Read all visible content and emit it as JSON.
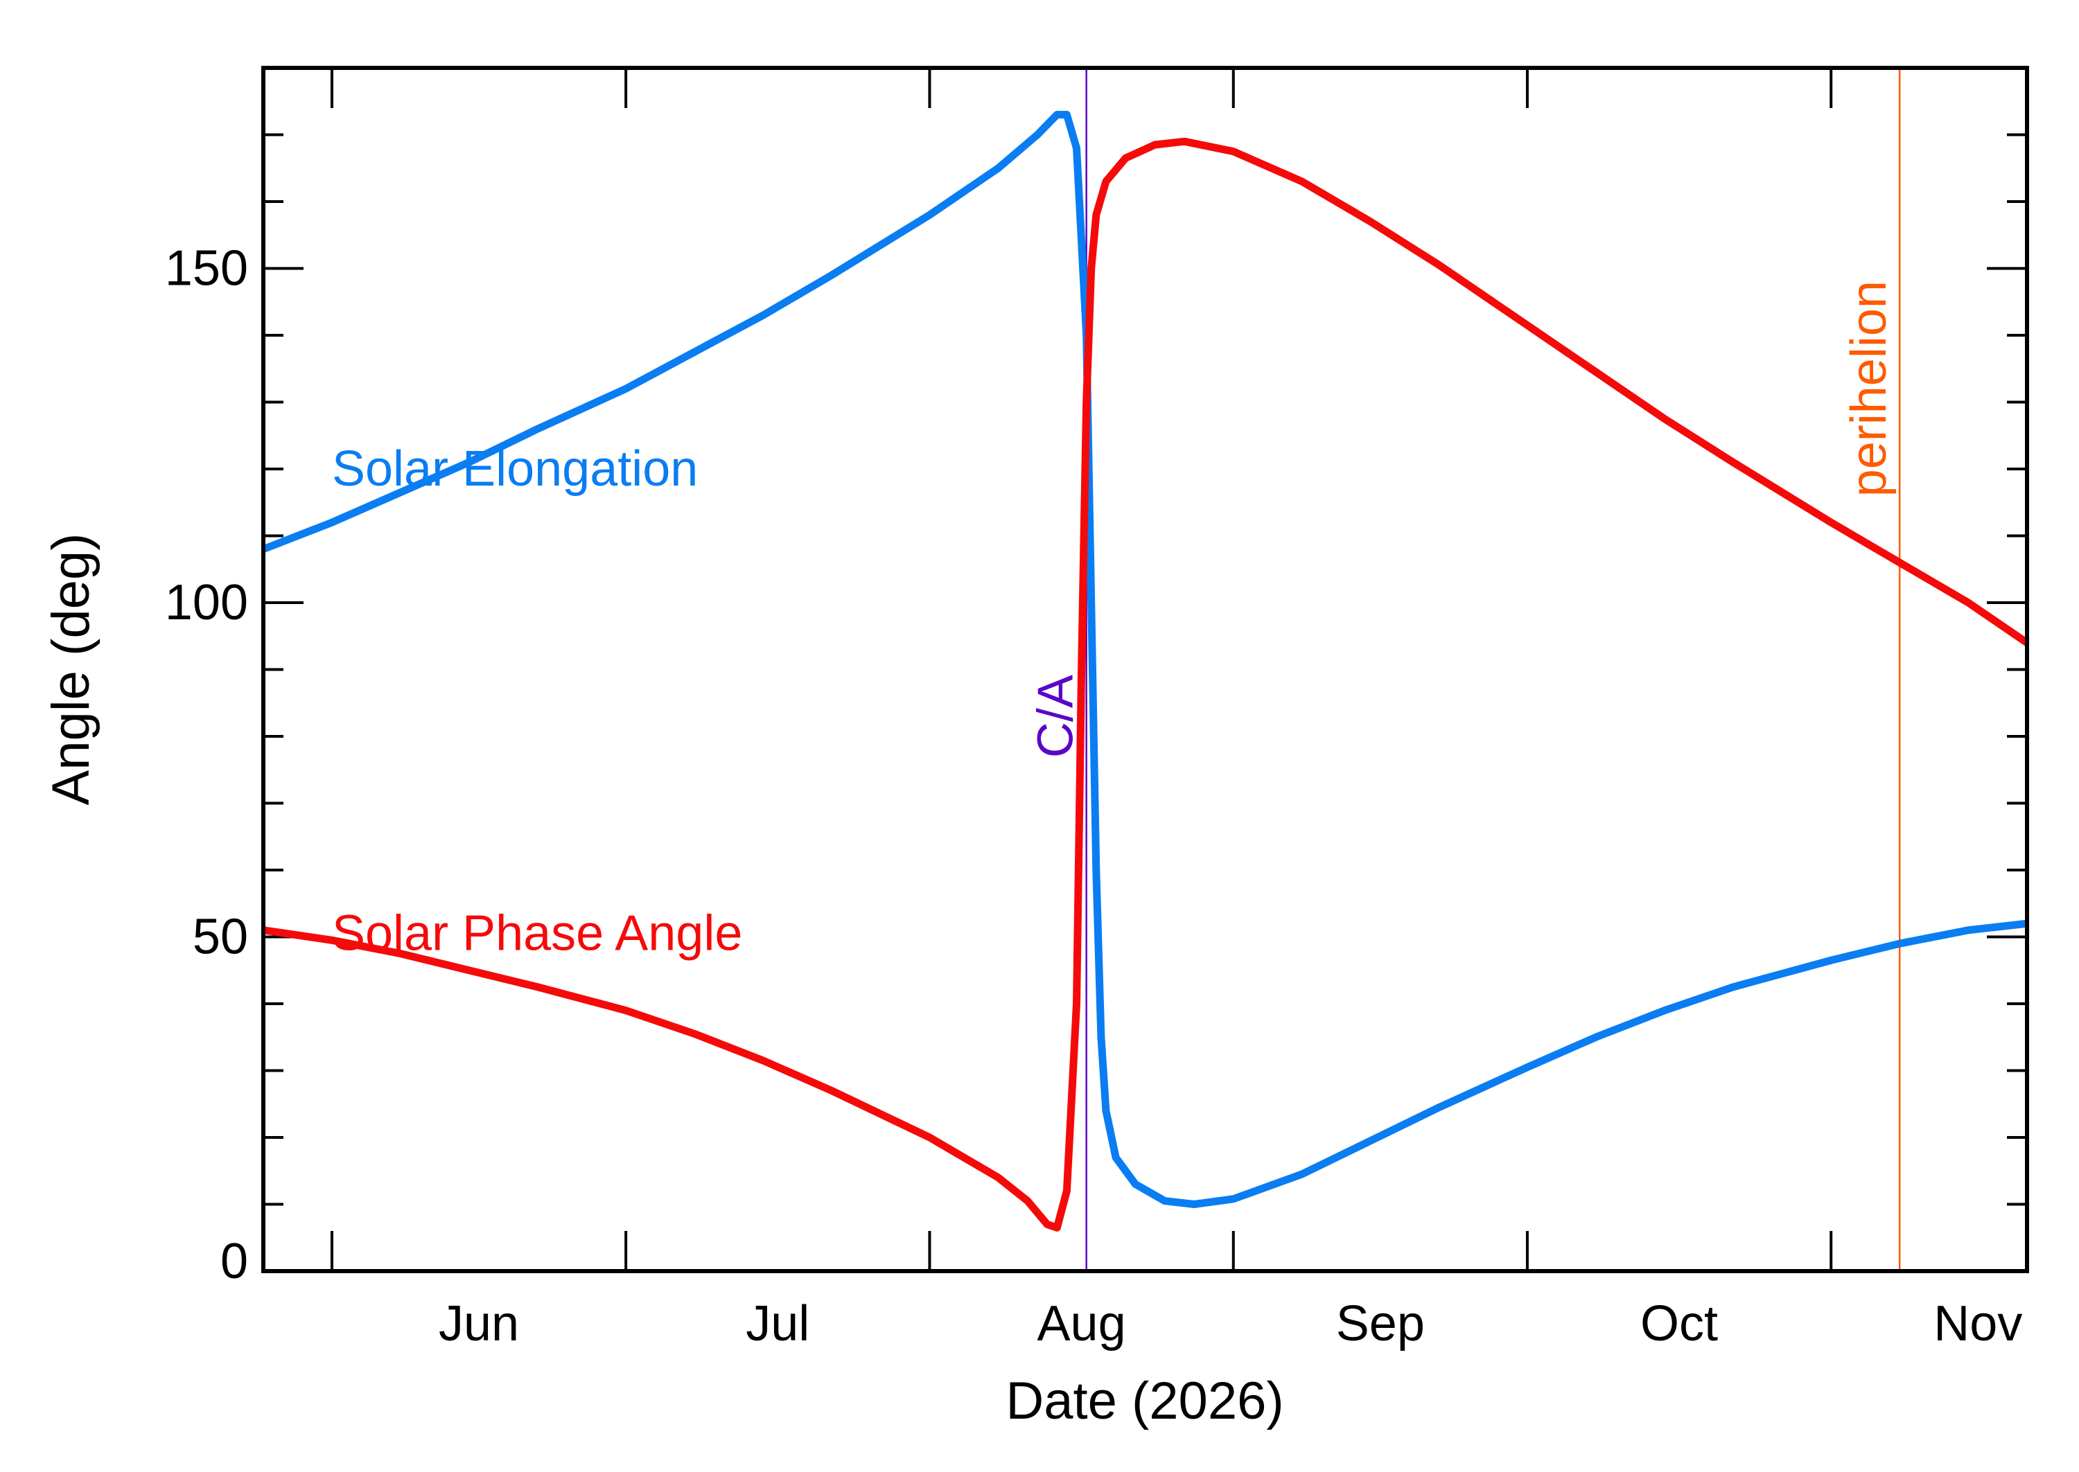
{
  "chart_data": {
    "type": "line",
    "title": "",
    "xlabel": "Date (2026)",
    "ylabel": "Angle (deg)",
    "xlim": [
      "2026-05-25",
      "2026-11-21"
    ],
    "ylim": [
      0,
      180
    ],
    "grid": false,
    "x_ticks": [
      {
        "date": "2026-06-01",
        "label": "Jun"
      },
      {
        "date": "2026-07-01",
        "label": "Jul"
      },
      {
        "date": "2026-08-01",
        "label": "Aug"
      },
      {
        "date": "2026-09-01",
        "label": "Sep"
      },
      {
        "date": "2026-10-01",
        "label": "Oct"
      },
      {
        "date": "2026-11-01",
        "label": "Nov"
      }
    ],
    "y_ticks": [
      0,
      50,
      100,
      150
    ],
    "series": [
      {
        "name": "Solar Elongation",
        "color": "#0a7df2",
        "points": [
          [
            "2026-05-25",
            108
          ],
          [
            "2026-06-01",
            112
          ],
          [
            "2026-06-08",
            116.5
          ],
          [
            "2026-06-15",
            121
          ],
          [
            "2026-06-22",
            126
          ],
          [
            "2026-07-01",
            132
          ],
          [
            "2026-07-08",
            137.5
          ],
          [
            "2026-07-15",
            143
          ],
          [
            "2026-07-22",
            149
          ],
          [
            "2026-08-01",
            158
          ],
          [
            "2026-08-08",
            165
          ],
          [
            "2026-08-12",
            170
          ],
          [
            "2026-08-14",
            173
          ],
          [
            "2026-08-15",
            173
          ],
          [
            "2026-08-16",
            168
          ],
          [
            "2026-08-17",
            140
          ],
          [
            "2026-08-17 12:00",
            100
          ],
          [
            "2026-08-18",
            60
          ],
          [
            "2026-08-18 12:00",
            35
          ],
          [
            "2026-08-19",
            24
          ],
          [
            "2026-08-20",
            17
          ],
          [
            "2026-08-22",
            13
          ],
          [
            "2026-08-25",
            10.5
          ],
          [
            "2026-08-28",
            10
          ],
          [
            "2026-09-01",
            10.8
          ],
          [
            "2026-09-08",
            14.5
          ],
          [
            "2026-09-15",
            19.5
          ],
          [
            "2026-09-22",
            24.5
          ],
          [
            "2026-10-01",
            30.5
          ],
          [
            "2026-10-08",
            35
          ],
          [
            "2026-10-15",
            39
          ],
          [
            "2026-10-22",
            42.5
          ],
          [
            "2026-11-01",
            46.5
          ],
          [
            "2026-11-08",
            49
          ],
          [
            "2026-11-15",
            51
          ],
          [
            "2026-11-21",
            52
          ]
        ]
      },
      {
        "name": "Solar Phase Angle",
        "color": "#f50a0a",
        "points": [
          [
            "2026-05-25",
            51
          ],
          [
            "2026-06-01",
            49.5
          ],
          [
            "2026-06-08",
            47.5
          ],
          [
            "2026-06-15",
            45
          ],
          [
            "2026-06-22",
            42.5
          ],
          [
            "2026-07-01",
            39
          ],
          [
            "2026-07-08",
            35.5
          ],
          [
            "2026-07-15",
            31.5
          ],
          [
            "2026-07-22",
            27
          ],
          [
            "2026-08-01",
            20
          ],
          [
            "2026-08-08",
            14
          ],
          [
            "2026-08-11",
            10.5
          ],
          [
            "2026-08-13",
            7
          ],
          [
            "2026-08-14",
            6.5
          ],
          [
            "2026-08-15",
            12
          ],
          [
            "2026-08-16",
            40
          ],
          [
            "2026-08-16 12:00",
            90
          ],
          [
            "2026-08-17",
            130
          ],
          [
            "2026-08-17 12:00",
            150
          ],
          [
            "2026-08-18",
            158
          ],
          [
            "2026-08-19",
            163
          ],
          [
            "2026-08-21",
            166.5
          ],
          [
            "2026-08-24",
            168.5
          ],
          [
            "2026-08-27",
            169
          ],
          [
            "2026-09-01",
            167.5
          ],
          [
            "2026-09-08",
            163
          ],
          [
            "2026-09-15",
            157
          ],
          [
            "2026-09-22",
            150.5
          ],
          [
            "2026-10-01",
            141.5
          ],
          [
            "2026-10-08",
            134.5
          ],
          [
            "2026-10-15",
            127.5
          ],
          [
            "2026-10-22",
            121
          ],
          [
            "2026-11-01",
            112
          ],
          [
            "2026-11-08",
            106
          ],
          [
            "2026-11-15",
            100
          ],
          [
            "2026-11-21",
            94
          ]
        ]
      }
    ],
    "labels": [
      {
        "text": "Solar Elongation",
        "date": "2026-06-01",
        "y": 120,
        "color": "#0a7df2"
      },
      {
        "text": "Solar Phase Angle",
        "date": "2026-06-01",
        "y": 50.5,
        "color": "#f50a0a"
      }
    ],
    "events": [
      {
        "text": "C/A",
        "date": "2026-08-17",
        "color": "#5a06c8",
        "label_y": 83
      },
      {
        "text": "perihelion",
        "date": "2026-11-08",
        "color": "#ff5a00",
        "label_y": 132
      }
    ]
  }
}
